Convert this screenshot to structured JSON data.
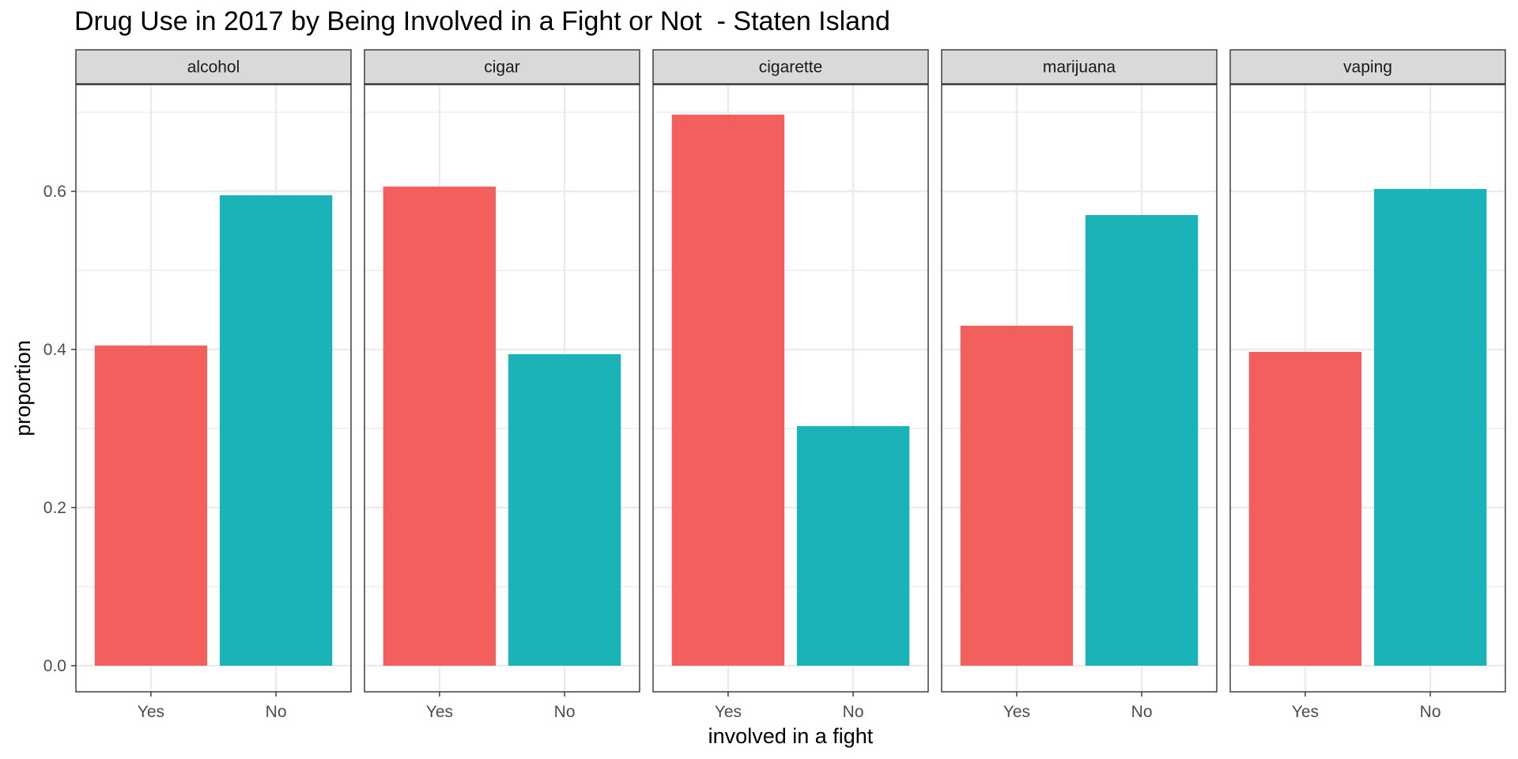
{
  "chart_data": {
    "type": "bar",
    "title": "Drug Use in 2017 by Being Involved in a Fight or Not  - Staten Island",
    "xlabel": "involved in a fight",
    "ylabel": "proportion",
    "categories": [
      "Yes",
      "No"
    ],
    "ylim": [
      -0.033,
      0.735
    ],
    "yticks": [
      0.0,
      0.2,
      0.4,
      0.6
    ],
    "ytick_labels": [
      "0.0",
      "0.2",
      "0.4",
      "0.6"
    ],
    "grid": true,
    "colors": {
      "Yes": "#F25F5C",
      "No": "#1AB3B7"
    },
    "panels": [
      {
        "name": "alcohol",
        "values": [
          0.405,
          0.595
        ]
      },
      {
        "name": "cigar",
        "values": [
          0.606,
          0.394
        ]
      },
      {
        "name": "cigarette",
        "values": [
          0.697,
          0.303
        ]
      },
      {
        "name": "marijuana",
        "values": [
          0.43,
          0.57
        ]
      },
      {
        "name": "vaping",
        "values": [
          0.397,
          0.603
        ]
      }
    ]
  }
}
